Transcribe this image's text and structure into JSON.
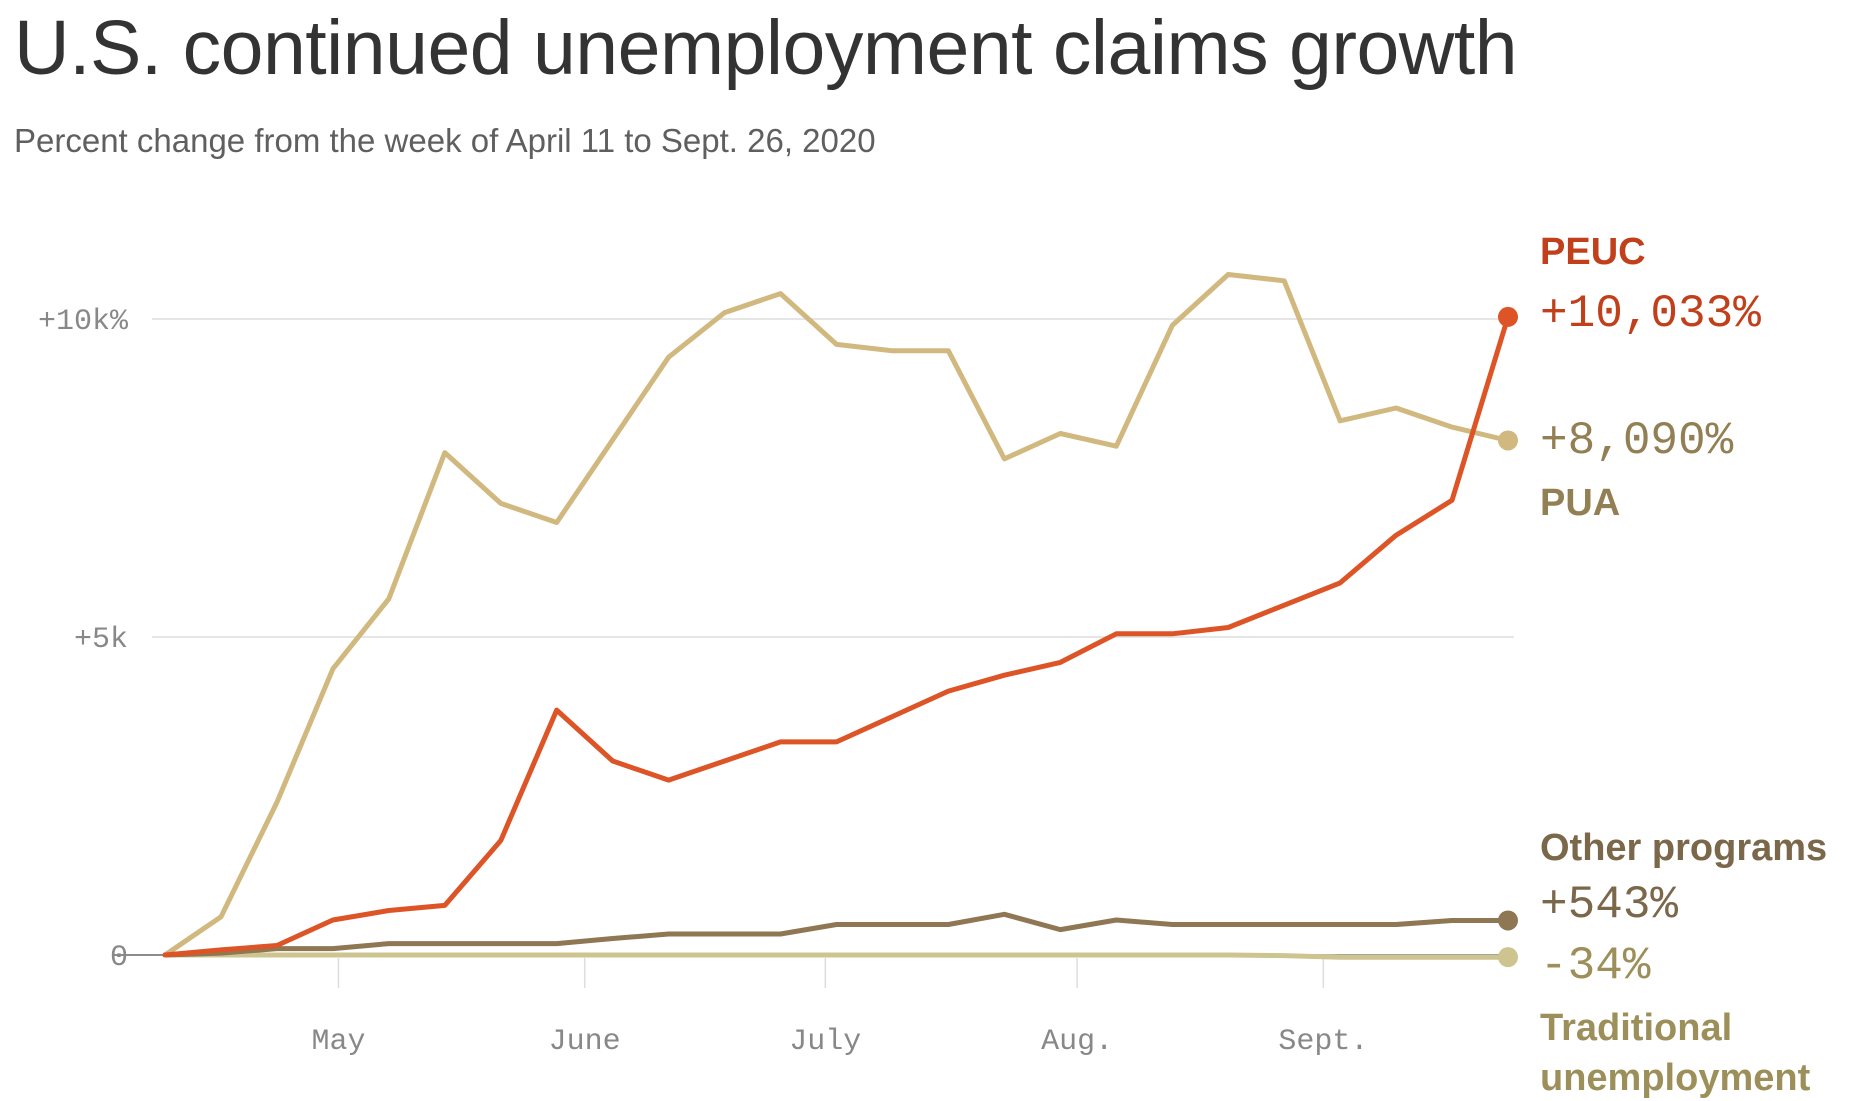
{
  "header": {
    "title": "U.S. continued unemployment claims growth",
    "subtitle": "Percent change from the week of April 11 to Sept. 26, 2020"
  },
  "chart_data": {
    "type": "line",
    "title": "U.S. continued unemployment claims growth",
    "subtitle": "Percent change from the week of April 11 to Sept. 26, 2020",
    "xlabel": "",
    "ylabel": "",
    "ylim": [
      -500,
      11200
    ],
    "grid": true,
    "y_ticks": [
      {
        "value": 0,
        "label": "0"
      },
      {
        "value": 5000,
        "label": "+5k"
      },
      {
        "value": 10000,
        "label": "+10k%"
      }
    ],
    "x_ticks": [
      {
        "label": "May",
        "week": 3.1
      },
      {
        "label": "June",
        "week": 7.5
      },
      {
        "label": "July",
        "week": 11.8
      },
      {
        "label": "Aug.",
        "week": 16.3
      },
      {
        "label": "Sept.",
        "week": 20.7
      }
    ],
    "x": [
      "Apr 11",
      "Apr 18",
      "Apr 25",
      "May 2",
      "May 9",
      "May 16",
      "May 23",
      "May 30",
      "Jun 6",
      "Jun 13",
      "Jun 20",
      "Jun 27",
      "Jul 4",
      "Jul 11",
      "Jul 18",
      "Jul 25",
      "Aug 1",
      "Aug 8",
      "Aug 15",
      "Aug 22",
      "Aug 29",
      "Sep 5",
      "Sep 12",
      "Sep 19",
      "Sep 26"
    ],
    "series": [
      {
        "name": "PUA",
        "value_label": "+8,090%",
        "color": "#d1b87e",
        "label_color": "#937f54",
        "values": [
          0,
          600,
          2400,
          4500,
          5600,
          7900,
          7100,
          6800,
          8100,
          9400,
          10100,
          10400,
          9600,
          9500,
          9500,
          7800,
          8200,
          8000,
          9900,
          10700,
          10600,
          8400,
          8600,
          8300,
          8090
        ]
      },
      {
        "name": "PEUC",
        "value_label": "+10,033%",
        "color": "#dd5426",
        "label_color": "#c13f1a",
        "values": [
          0,
          80,
          150,
          550,
          700,
          780,
          1800,
          3850,
          3050,
          2750,
          3050,
          3350,
          3350,
          3750,
          4150,
          4400,
          4600,
          5050,
          5050,
          5150,
          5500,
          5850,
          6600,
          7150,
          10033
        ]
      },
      {
        "name": "Other programs",
        "value_label": "+543%",
        "color": "#8e7752",
        "label_color": "#7b674a",
        "values": [
          0,
          30,
          100,
          100,
          180,
          180,
          180,
          180,
          260,
          330,
          330,
          330,
          480,
          480,
          480,
          640,
          400,
          550,
          480,
          480,
          480,
          480,
          480,
          543,
          543
        ]
      },
      {
        "name": "Traditional unemployment",
        "value_label": "-34%",
        "color": "#cdc490",
        "label_color": "#9c8f5a",
        "values": [
          0,
          0,
          0,
          0,
          0,
          0,
          0,
          0,
          0,
          0,
          0,
          0,
          0,
          0,
          0,
          0,
          0,
          0,
          0,
          0,
          -10,
          -34,
          -34,
          -34,
          -34
        ]
      }
    ]
  }
}
